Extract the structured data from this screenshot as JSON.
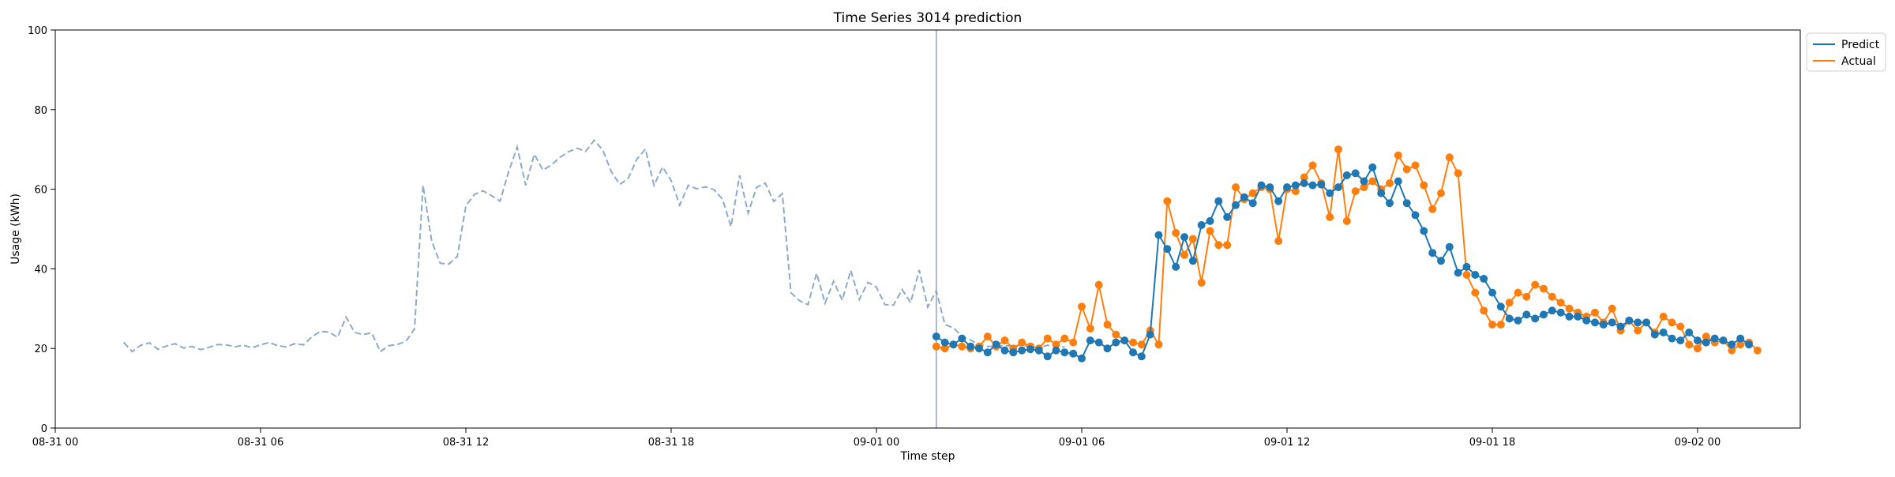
{
  "chart_data": {
    "type": "line",
    "title": "Time Series 3014 prediction",
    "xlabel": "Time step",
    "ylabel": "Usage (kWh)",
    "ylim": [
      0,
      100
    ],
    "xlim": [
      "08-31 00",
      "09-02 03"
    ],
    "x_tick_labels": [
      "08-31 00",
      "08-31 06",
      "08-31 12",
      "08-31 18",
      "09-01 00",
      "09-01 06",
      "09-01 12",
      "09-01 18",
      "09-02 00"
    ],
    "y_tick_labels": [
      "0",
      "20",
      "40",
      "60",
      "80",
      "100"
    ],
    "grid": false,
    "legend": {
      "placement": "outside-top-right",
      "entries": [
        "Predict",
        "Actual"
      ]
    },
    "forecast_start": "09-01 01:45",
    "colors": {
      "history": "#8fa9c8",
      "predict": "#1f77b4",
      "actual": "#ff7f0e",
      "marker_line": "#8da0cb"
    },
    "history": {
      "start": "08-31 02:00",
      "step_minutes": 15,
      "values": [
        21.5,
        19.2,
        20.8,
        21.4,
        19.8,
        20.6,
        21.2,
        20.1,
        20.5,
        19.7,
        20.3,
        21.0,
        20.9,
        20.4,
        20.8,
        20.2,
        20.9,
        21.5,
        20.7,
        20.4,
        21.2,
        20.9,
        22.9,
        24.3,
        24.1,
        22.8,
        27.9,
        24.0,
        23.5,
        23.9,
        19.2,
        20.7,
        21.0,
        21.8,
        24.9,
        61.0,
        47.0,
        41.4,
        41.2,
        43.1,
        55.8,
        58.7,
        59.6,
        58.4,
        57.0,
        64.4,
        70.6,
        61.0,
        68.8,
        64.8,
        66.1,
        68.0,
        69.4,
        70.3,
        69.5,
        72.3,
        69.9,
        64.4,
        61.2,
        62.8,
        67.6,
        70.1,
        61.0,
        65.6,
        62.2,
        56.0,
        61.0,
        60.1,
        60.6,
        59.9,
        57.5,
        50.6,
        63.5,
        54.0,
        60.5,
        61.5,
        56.9,
        58.9,
        34.0,
        32.0,
        31.0,
        38.9,
        31.4,
        36.9,
        32.1,
        39.6,
        32.3,
        36.6,
        35.4,
        31.0,
        30.9,
        34.8,
        31.5,
        39.7,
        30.4,
        34.5,
        26.0,
        25.2,
        23.0,
        22.1,
        21.0,
        20.5,
        20.6,
        20.7,
        20.6,
        20.8,
        20.4,
        20.2,
        20.8,
        20.6,
        20.3
      ]
    },
    "series": [
      {
        "name": "Predict",
        "start": "09-01 01:45",
        "step_minutes": 15,
        "values": [
          23.0,
          21.5,
          21.0,
          22.5,
          20.5,
          20.0,
          19.0,
          21.0,
          19.5,
          19.0,
          19.5,
          19.8,
          19.5,
          18.0,
          19.5,
          19.0,
          18.7,
          17.5,
          22.0,
          21.5,
          20.0,
          21.5,
          22.0,
          19.0,
          18.0,
          23.5,
          48.5,
          45.0,
          40.5,
          48.0,
          42.0,
          51.0,
          52.0,
          57.0,
          53.0,
          56.0,
          58.0,
          56.5,
          61.0,
          60.5,
          57.0,
          60.5,
          61.0,
          61.5,
          61.0,
          61.2,
          59.0,
          60.5,
          63.5,
          64.0,
          62.0,
          65.5,
          59.0,
          56.5,
          62.0,
          56.5,
          53.5,
          49.5,
          44.0,
          42.0,
          45.5,
          39.0,
          40.5,
          38.5,
          37.5,
          34.0,
          30.5,
          27.5,
          27.0,
          28.5,
          27.5,
          28.5,
          29.5,
          29.0,
          28.0,
          28.0,
          27.0,
          26.5,
          26.0,
          26.5,
          25.5,
          27.0,
          26.5,
          26.5,
          23.5,
          24.0,
          22.5,
          22.0,
          24.0,
          22.0,
          21.5,
          22.5,
          22.0,
          21.0,
          22.5,
          21.0
        ]
      },
      {
        "name": "Actual",
        "start": "09-01 01:45",
        "step_minutes": 15,
        "values": [
          20.5,
          20.0,
          21.0,
          20.5,
          20.0,
          20.5,
          23.0,
          20.5,
          22.0,
          20.0,
          21.5,
          20.5,
          20.0,
          22.5,
          21.0,
          22.5,
          21.5,
          30.5,
          25.0,
          36.0,
          26.0,
          23.5,
          22.0,
          21.5,
          21.0,
          24.5,
          21.0,
          57.0,
          49.0,
          43.5,
          47.5,
          36.5,
          49.5,
          46.0,
          46.0,
          60.5,
          57.5,
          59.0,
          60.5,
          60.0,
          47.0,
          60.0,
          59.5,
          63.0,
          66.0,
          61.5,
          53.0,
          70.0,
          52.0,
          59.5,
          60.5,
          62.0,
          60.0,
          61.5,
          68.5,
          65.0,
          66.0,
          61.0,
          55.0,
          59.0,
          68.0,
          64.0,
          38.5,
          34.0,
          29.5,
          26.0,
          26.0,
          31.5,
          34.0,
          33.0,
          36.0,
          35.0,
          33.0,
          31.5,
          30.0,
          29.0,
          28.0,
          29.0,
          26.5,
          30.0,
          24.5,
          27.0,
          24.5,
          26.5,
          24.0,
          28.0,
          26.5,
          25.5,
          21.0,
          20.0,
          23.0,
          21.5,
          22.0,
          19.5,
          21.0,
          21.5,
          19.5
        ]
      }
    ]
  }
}
